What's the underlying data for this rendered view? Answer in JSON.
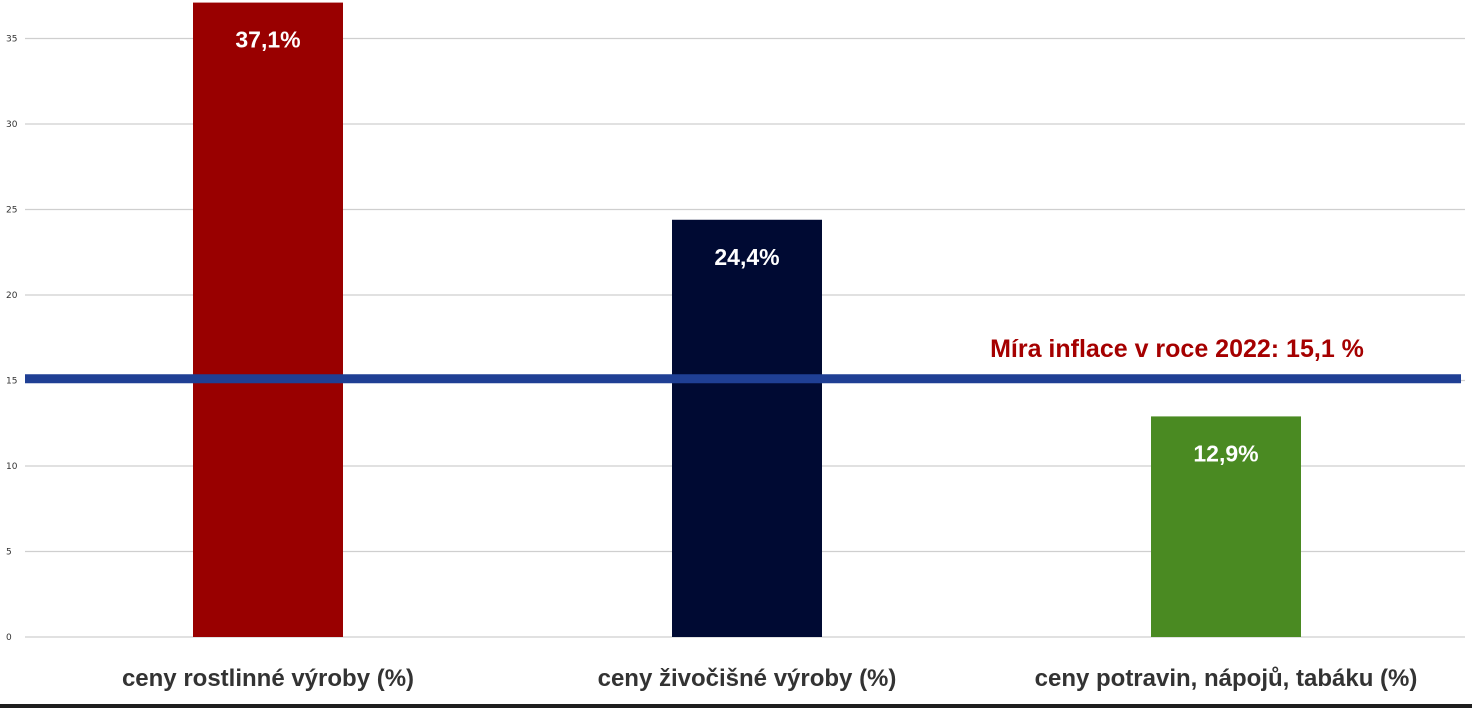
{
  "chart_data": {
    "type": "bar",
    "categories": [
      "ceny rostlinné výroby (%)",
      "ceny živočišné výroby (%)",
      "ceny potravin, nápojů, tabáku (%)"
    ],
    "values": [
      37.1,
      24.4,
      12.9
    ],
    "data_labels": [
      "37,1%",
      "24,4%",
      "12,9%"
    ],
    "bar_colors": [
      "#990000",
      "#000a33",
      "#4a8a22"
    ],
    "ylim": [
      0,
      37
    ],
    "yticks": [
      0,
      5,
      10,
      15,
      20,
      25,
      30,
      35
    ],
    "ytick_labels": [
      "0",
      "5",
      "10",
      "15",
      "20",
      "25",
      "30",
      "35"
    ],
    "grid": true,
    "reference_line": {
      "value": 15.1,
      "label": "Míra inflace v roce 2022: 15,1 %",
      "line_color": "#1f3f94",
      "label_color": "#a50000"
    }
  }
}
